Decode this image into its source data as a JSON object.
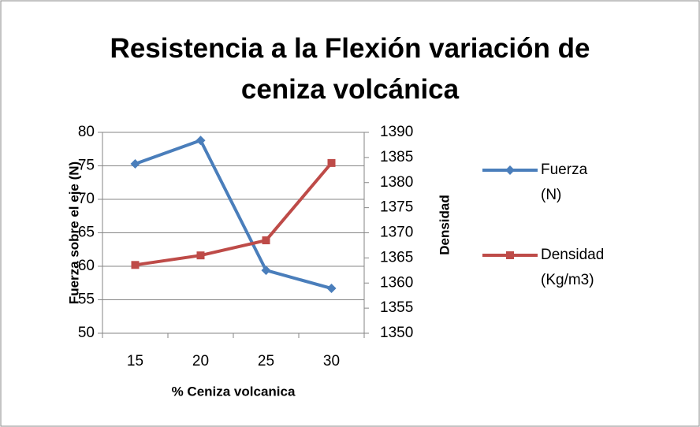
{
  "chart_data": {
    "type": "line",
    "title": "Resistencia a la Flexión variación de ceniza volcánica",
    "x_label": "% Ceniza volcanica",
    "y_label": "Fuerza sobre el eje (N)",
    "y2_label": "Densidad",
    "categories": [
      "15",
      "20",
      "25",
      "30"
    ],
    "series": [
      {
        "name": "Fuerza (N)",
        "color": "#4a7ebb",
        "values": [
          75.3,
          78.8,
          59.4,
          56.7
        ]
      },
      {
        "name": "Densidad (Kg/m3)",
        "color": "#be4b48",
        "values": [
          1363.6,
          1365.5,
          1368.5,
          1383.9
        ],
        "axis": "y2"
      }
    ],
    "ylim": [
      50,
      80
    ],
    "yticks": [
      50,
      55,
      60,
      65,
      70,
      75,
      80
    ],
    "y2lim": [
      1350,
      1390
    ],
    "y2ticks": [
      1350,
      1355,
      1360,
      1365,
      1370,
      1375,
      1380,
      1385,
      1390
    ],
    "grid": true,
    "legend": "right"
  }
}
